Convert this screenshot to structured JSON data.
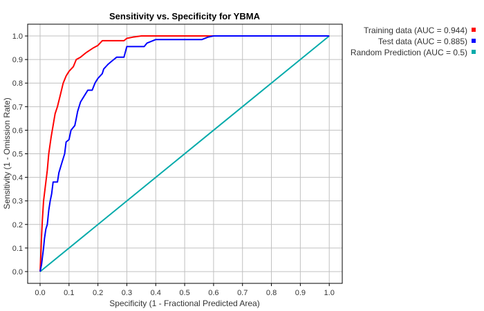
{
  "chart_data": {
    "type": "line",
    "title": "Sensitivity vs. Specificity for YBMA",
    "xlabel": "Specificity  (1 - Fractional Predicted Area)",
    "ylabel": "Sensitivity  (1 - Omission Rate)",
    "xlim": [
      -0.043,
      1.045
    ],
    "ylim": [
      -0.05,
      1.05
    ],
    "xticks": [
      "0.0",
      "0.1",
      "0.2",
      "0.3",
      "0.4",
      "0.5",
      "0.6",
      "0.7",
      "0.8",
      "0.9",
      "1.0"
    ],
    "yticks": [
      "0.0",
      "0.1",
      "0.2",
      "0.3",
      "0.4",
      "0.5",
      "0.6",
      "0.7",
      "0.8",
      "0.9",
      "1.0"
    ],
    "grid": true,
    "legend_position": "right-top outside",
    "series": [
      {
        "name": "Training data (AUC = 0.944)",
        "color": "#ff0000",
        "points": [
          [
            0,
            0
          ],
          [
            0.003,
            0.08
          ],
          [
            0.005,
            0.15
          ],
          [
            0.008,
            0.22
          ],
          [
            0.012,
            0.3
          ],
          [
            0.018,
            0.36
          ],
          [
            0.025,
            0.43
          ],
          [
            0.03,
            0.5
          ],
          [
            0.038,
            0.57
          ],
          [
            0.045,
            0.62
          ],
          [
            0.052,
            0.67
          ],
          [
            0.06,
            0.7
          ],
          [
            0.07,
            0.75
          ],
          [
            0.08,
            0.8
          ],
          [
            0.09,
            0.83
          ],
          [
            0.1,
            0.85
          ],
          [
            0.115,
            0.87
          ],
          [
            0.125,
            0.9
          ],
          [
            0.14,
            0.91
          ],
          [
            0.16,
            0.93
          ],
          [
            0.185,
            0.95
          ],
          [
            0.2,
            0.96
          ],
          [
            0.215,
            0.98
          ],
          [
            0.29,
            0.98
          ],
          [
            0.3,
            0.99
          ],
          [
            0.32,
            0.995
          ],
          [
            0.35,
            1.0
          ],
          [
            1.0,
            1.0
          ]
        ]
      },
      {
        "name": "Test data (AUC = 0.885)",
        "color": "#0000ff",
        "points": [
          [
            0,
            0
          ],
          [
            0.005,
            0.03
          ],
          [
            0.008,
            0.06
          ],
          [
            0.012,
            0.1
          ],
          [
            0.015,
            0.14
          ],
          [
            0.02,
            0.18
          ],
          [
            0.025,
            0.2
          ],
          [
            0.03,
            0.26
          ],
          [
            0.035,
            0.3
          ],
          [
            0.04,
            0.33
          ],
          [
            0.045,
            0.38
          ],
          [
            0.06,
            0.38
          ],
          [
            0.065,
            0.42
          ],
          [
            0.075,
            0.46
          ],
          [
            0.085,
            0.5
          ],
          [
            0.09,
            0.55
          ],
          [
            0.1,
            0.56
          ],
          [
            0.107,
            0.6
          ],
          [
            0.12,
            0.62
          ],
          [
            0.125,
            0.65
          ],
          [
            0.13,
            0.68
          ],
          [
            0.14,
            0.72
          ],
          [
            0.15,
            0.74
          ],
          [
            0.165,
            0.77
          ],
          [
            0.18,
            0.77
          ],
          [
            0.19,
            0.8
          ],
          [
            0.2,
            0.82
          ],
          [
            0.215,
            0.84
          ],
          [
            0.22,
            0.86
          ],
          [
            0.235,
            0.88
          ],
          [
            0.245,
            0.89
          ],
          [
            0.255,
            0.9
          ],
          [
            0.265,
            0.91
          ],
          [
            0.29,
            0.91
          ],
          [
            0.3,
            0.955
          ],
          [
            0.36,
            0.955
          ],
          [
            0.37,
            0.97
          ],
          [
            0.4,
            0.985
          ],
          [
            0.56,
            0.985
          ],
          [
            0.58,
            0.995
          ],
          [
            0.6,
            1.0
          ],
          [
            1.0,
            1.0
          ]
        ]
      },
      {
        "name": "Random Prediction (AUC = 0.5)",
        "color": "#00aaaa",
        "points": [
          [
            0,
            0
          ],
          [
            1,
            1
          ]
        ]
      }
    ]
  }
}
